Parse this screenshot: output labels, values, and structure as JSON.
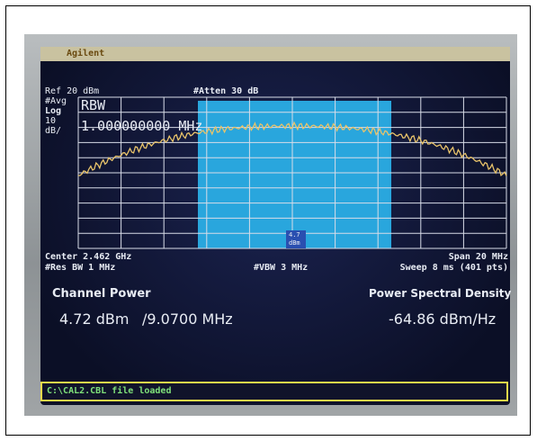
{
  "screen": {
    "brand": "Agilent",
    "ref": "Ref 20 dBm",
    "atten": "#Atten 30 dB",
    "avg": "#Avg",
    "scale_type": "Log",
    "scale_value": "10",
    "scale_unit": "dB/",
    "rbw_label": "RBW",
    "rbw_value": "1.000000000 MHz",
    "marker_value": "4.7",
    "marker_unit": "dBm",
    "center": "Center 2.462 GHz",
    "res_bw": "#Res BW 1 MHz",
    "vbw": "#VBW 3 MHz",
    "span": "Span 20 MHz",
    "sweep": "Sweep 8 ms (401 pts)",
    "channel_power_label": "Channel Power",
    "channel_power_value": "4.72 dBm",
    "channel_bandwidth": "/9.0700 MHz",
    "psd_label": "Power Spectral Density",
    "psd_value": "-64.86 dBm/Hz",
    "status": "C:\\CAL2.CBL file loaded"
  }
}
